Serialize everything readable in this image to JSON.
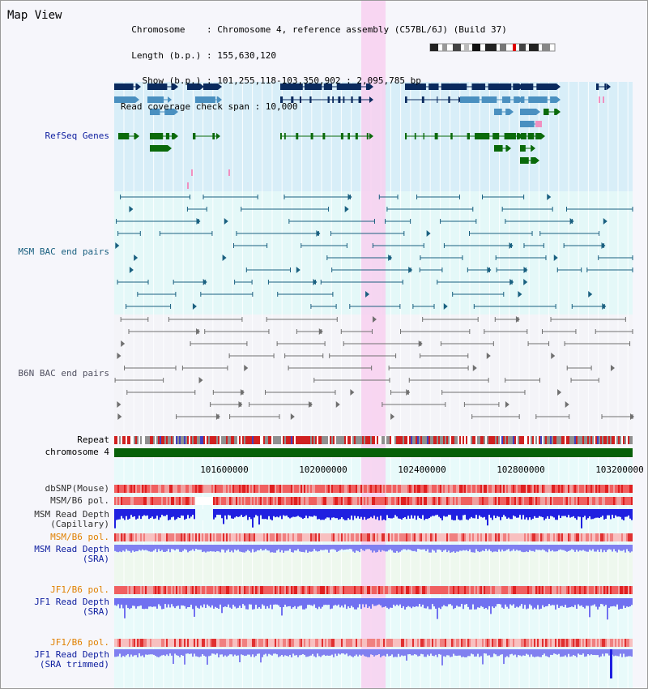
{
  "header": {
    "title": "Map View",
    "info_lines": [
      "  Chromosome    : Chromosome 4, reference assembly (C57BL/6J) (Build 37)",
      "  Length (b.p.) : 155,630,120",
      "    Show (b.p.) : 101,255,118-103,350,902 : 2,095,785 bp",
      "Read coverage check span : 10,000"
    ]
  },
  "tracks": {
    "refseq": "RefSeq Genes",
    "msm_bac": "MSM BAC end pairs",
    "b6n_bac": "B6N BAC end pairs",
    "repeat": "Repeat",
    "chromosome": "chromosome 4",
    "dbsnp": "dbSNP(Mouse)",
    "msm_b6_pol_1": "MSM/B6 pol.",
    "msm_read_depth_cap": [
      "MSM Read Depth",
      "(Capillary)"
    ],
    "msm_b6_pol_2": "MSM/B6 pol.",
    "msm_read_depth_sra": [
      "MSM Read Depth",
      "(SRA)"
    ],
    "jf1_b6_pol_1": "JF1/B6 pol.",
    "jf1_read_depth_sra": [
      "JF1 Read Depth",
      "(SRA)"
    ],
    "jf1_b6_pol_2": "JF1/B6 pol.",
    "jf1_read_depth_trim": [
      "JF1 Read Depth",
      "(SRA trimmed)"
    ]
  },
  "axis": {
    "ticks": [
      "101600000",
      "102000000",
      "102400000",
      "102800000",
      "103200000"
    ]
  },
  "colors": {
    "gene_dark": "#0a2a5e",
    "gene_mid": "#4a90c0",
    "gene_green": "#0a6a0a",
    "msm_pair": "#1a6080",
    "b6n_pair": "#707070",
    "highlight": "#f8d0f0",
    "label_blue": "#1020a0",
    "label_orange": "#e08000"
  }
}
